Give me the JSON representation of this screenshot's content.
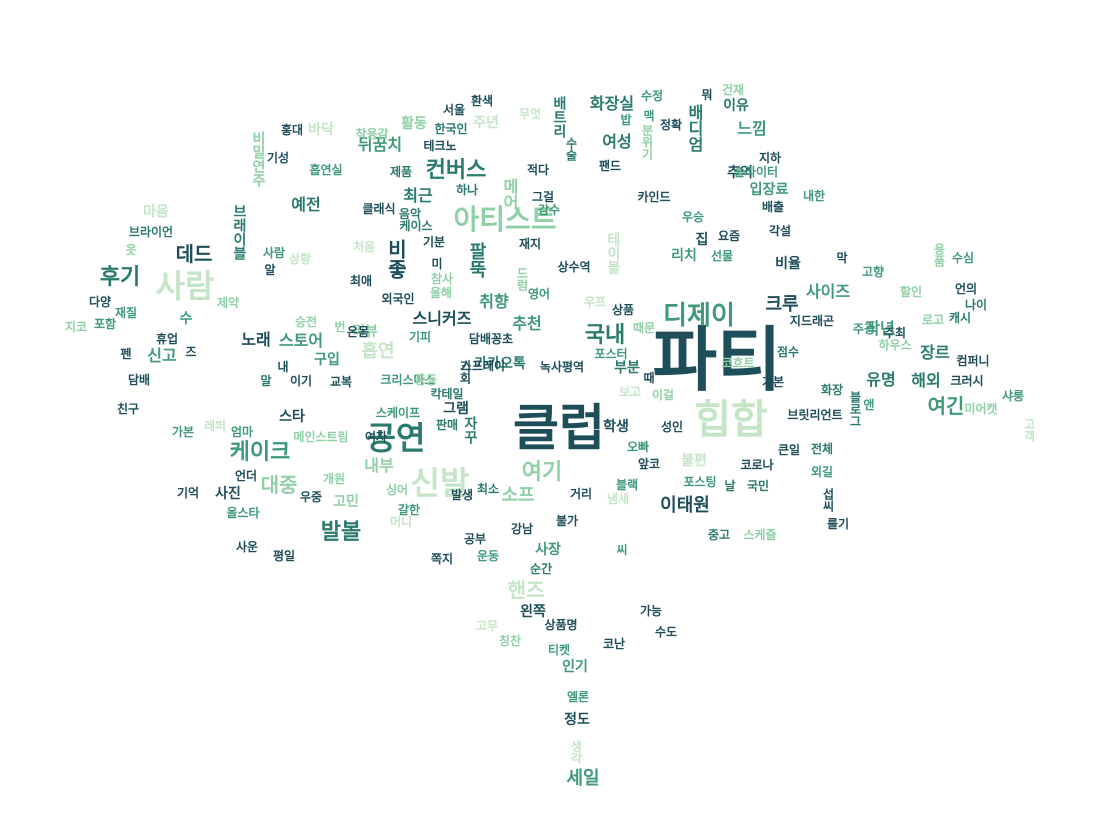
{
  "colors": {
    "dark": "#1d4e5a",
    "teal": "#2a7a6e",
    "green": "#3f9a78",
    "mint": "#8fd0a6",
    "pale": "#c4e6c6"
  },
  "words": [
    {
      "text": "파티",
      "c": "dark"
    },
    {
      "text": "클럽",
      "c": "dark"
    },
    {
      "text": "힙합",
      "c": "pale"
    },
    {
      "text": "공연",
      "c": "teal"
    },
    {
      "text": "사람",
      "c": "pale"
    },
    {
      "text": "아티스트",
      "c": "mint"
    },
    {
      "text": "신발",
      "c": "pale"
    },
    {
      "text": "디제이",
      "c": "green"
    },
    {
      "text": "후기",
      "c": "teal"
    },
    {
      "text": "컨버스",
      "c": "teal"
    },
    {
      "text": "케이크",
      "c": "green"
    },
    {
      "text": "발볼",
      "c": "teal"
    },
    {
      "text": "여기",
      "c": "mint"
    },
    {
      "text": "국내",
      "c": "teal"
    },
    {
      "text": "데드",
      "c": "dark"
    },
    {
      "text": "대중",
      "c": "mint"
    },
    {
      "text": "여긴",
      "c": "green"
    },
    {
      "text": "이태원",
      "c": "dark"
    },
    {
      "text": "소프",
      "c": "mint"
    },
    {
      "text": "핸즈",
      "c": "pale"
    },
    {
      "text": "세일",
      "c": "green"
    },
    {
      "text": "크루",
      "c": "dark"
    },
    {
      "text": "흡연",
      "c": "pale"
    },
    {
      "text": "추천",
      "c": "green"
    },
    {
      "text": "취향",
      "c": "green"
    },
    {
      "text": "화장실",
      "c": "teal"
    },
    {
      "text": "여성",
      "c": "teal"
    },
    {
      "text": "느낌",
      "c": "green"
    },
    {
      "text": "노래",
      "c": "dark"
    },
    {
      "text": "스토어",
      "c": "green"
    },
    {
      "text": "신고",
      "c": "green"
    },
    {
      "text": "내부",
      "c": "mint"
    },
    {
      "text": "장르",
      "c": "teal"
    },
    {
      "text": "작년",
      "c": "green"
    },
    {
      "text": "사이즈",
      "c": "green"
    },
    {
      "text": "유명",
      "c": "teal"
    },
    {
      "text": "해외",
      "c": "teal"
    },
    {
      "text": "최근",
      "c": "teal"
    },
    {
      "text": "예전",
      "c": "teal"
    },
    {
      "text": "뒤꿈치",
      "c": "green"
    },
    {
      "text": "스니커즈",
      "c": "dark"
    },
    {
      "text": "사진",
      "c": "dark"
    },
    {
      "text": "사장",
      "c": "green"
    },
    {
      "text": "정도",
      "c": "dark"
    },
    {
      "text": "인기",
      "c": "green"
    },
    {
      "text": "학생",
      "c": "dark"
    },
    {
      "text": "그램",
      "c": "dark"
    },
    {
      "text": "카카오톡",
      "c": "teal"
    },
    {
      "text": "부분",
      "c": "teal"
    },
    {
      "text": "리뷰",
      "c": "mint"
    },
    {
      "text": "구입",
      "c": "green"
    },
    {
      "text": "고민",
      "c": "mint"
    },
    {
      "text": "스타",
      "c": "dark"
    },
    {
      "text": "리치",
      "c": "green"
    },
    {
      "text": "비율",
      "c": "dark"
    },
    {
      "text": "입장료",
      "c": "green"
    },
    {
      "text": "추억",
      "c": "dark"
    },
    {
      "text": "이유",
      "c": "teal"
    },
    {
      "text": "마음",
      "c": "pale"
    },
    {
      "text": "활동",
      "c": "mint"
    },
    {
      "text": "바닥",
      "c": "pale"
    },
    {
      "text": "주년",
      "c": "pale"
    },
    {
      "text": "한국인",
      "c": "teal"
    },
    {
      "text": "교복",
      "c": "dark"
    },
    {
      "text": "왼쪽",
      "c": "dark"
    },
    {
      "text": "집",
      "c": "dark"
    },
    {
      "text": "불편",
      "c": "pale"
    },
    {
      "text": "전체",
      "c": "teal"
    },
    {
      "text": "코로나",
      "c": "dark"
    },
    {
      "text": "거리",
      "c": "dark"
    },
    {
      "text": "상품명",
      "c": "dark"
    },
    {
      "text": "수",
      "c": "green"
    },
    {
      "text": "휴업",
      "c": "dark"
    },
    {
      "text": "담배",
      "c": "dark"
    },
    {
      "text": "펜",
      "c": "dark"
    },
    {
      "text": "다양",
      "c": "dark"
    },
    {
      "text": "지코",
      "c": "mint"
    },
    {
      "text": "포함",
      "c": "green"
    },
    {
      "text": "재질",
      "c": "green"
    },
    {
      "text": "친구",
      "c": "dark"
    },
    {
      "text": "기억",
      "c": "dark"
    },
    {
      "text": "사운",
      "c": "dark"
    },
    {
      "text": "평일",
      "c": "dark"
    },
    {
      "text": "올스타",
      "c": "green"
    },
    {
      "text": "언더",
      "c": "dark"
    },
    {
      "text": "우중",
      "c": "dark"
    },
    {
      "text": "홍대",
      "c": "dark"
    },
    {
      "text": "기성",
      "c": "dark"
    },
    {
      "text": "흡연실",
      "c": "green"
    },
    {
      "text": "제품",
      "c": "teal"
    },
    {
      "text": "착용감",
      "c": "mint"
    },
    {
      "text": "클래식",
      "c": "dark"
    },
    {
      "text": "음악",
      "c": "teal"
    },
    {
      "text": "케이스",
      "c": "teal"
    },
    {
      "text": "기분",
      "c": "dark"
    },
    {
      "text": "최애",
      "c": "dark"
    },
    {
      "text": "외국인",
      "c": "dark"
    },
    {
      "text": "스프레이",
      "c": "dark"
    },
    {
      "text": "녹사평역",
      "c": "dark"
    },
    {
      "text": "담배꽁초",
      "c": "dark"
    },
    {
      "text": "크리스마스",
      "c": "green"
    },
    {
      "text": "판매",
      "c": "teal"
    },
    {
      "text": "스케이프",
      "c": "green"
    },
    {
      "text": "상수역",
      "c": "dark"
    },
    {
      "text": "재지",
      "c": "dark"
    },
    {
      "text": "감수",
      "c": "green"
    },
    {
      "text": "그걸",
      "c": "dark"
    },
    {
      "text": "하나",
      "c": "teal"
    },
    {
      "text": "테크노",
      "c": "dark"
    },
    {
      "text": "서울",
      "c": "dark"
    },
    {
      "text": "환색",
      "c": "dark"
    },
    {
      "text": "무엇",
      "c": "pale"
    },
    {
      "text": "수정",
      "c": "green"
    },
    {
      "text": "건재",
      "c": "mint"
    },
    {
      "text": "뭐",
      "c": "dark"
    },
    {
      "text": "정확",
      "c": "dark"
    },
    {
      "text": "맥",
      "c": "green"
    },
    {
      "text": "밥",
      "c": "green"
    },
    {
      "text": "팬드",
      "c": "dark"
    },
    {
      "text": "적다",
      "c": "dark"
    },
    {
      "text": "카인드",
      "c": "dark"
    },
    {
      "text": "지하",
      "c": "dark"
    },
    {
      "text": "솔라이터",
      "c": "green"
    },
    {
      "text": "배출",
      "c": "dark"
    },
    {
      "text": "내한",
      "c": "green"
    },
    {
      "text": "우승",
      "c": "green"
    },
    {
      "text": "요즘",
      "c": "dark"
    },
    {
      "text": "각설",
      "c": "dark"
    },
    {
      "text": "선물",
      "c": "green"
    },
    {
      "text": "막",
      "c": "dark"
    },
    {
      "text": "수심",
      "c": "green"
    },
    {
      "text": "고향",
      "c": "green"
    },
    {
      "text": "할인",
      "c": "mint"
    },
    {
      "text": "언의",
      "c": "dark"
    },
    {
      "text": "나이",
      "c": "teal"
    },
    {
      "text": "지드래곤",
      "c": "dark"
    },
    {
      "text": "로고",
      "c": "mint"
    },
    {
      "text": "캐시",
      "c": "teal"
    },
    {
      "text": "주광",
      "c": "green"
    },
    {
      "text": "주최",
      "c": "dark"
    },
    {
      "text": "하우스",
      "c": "mint"
    },
    {
      "text": "컴퍼니",
      "c": "dark"
    },
    {
      "text": "점수",
      "c": "teal"
    },
    {
      "text": "기본",
      "c": "dark"
    },
    {
      "text": "화장",
      "c": "teal"
    },
    {
      "text": "크러시",
      "c": "dark"
    },
    {
      "text": "샤룽",
      "c": "green"
    },
    {
      "text": "미어캣",
      "c": "mint"
    },
    {
      "text": "브릿리언트",
      "c": "dark"
    },
    {
      "text": "앤",
      "c": "green"
    },
    {
      "text": "큰일",
      "c": "dark"
    },
    {
      "text": "외길",
      "c": "green"
    },
    {
      "text": "국민",
      "c": "teal"
    },
    {
      "text": "날",
      "c": "teal"
    },
    {
      "text": "포스팅",
      "c": "green"
    },
    {
      "text": "블랙",
      "c": "green"
    },
    {
      "text": "냄새",
      "c": "pale"
    },
    {
      "text": "앞코",
      "c": "dark"
    },
    {
      "text": "오빠",
      "c": "green"
    },
    {
      "text": "성인",
      "c": "dark"
    },
    {
      "text": "이걸",
      "c": "mint"
    },
    {
      "text": "보고",
      "c": "pale"
    },
    {
      "text": "때",
      "c": "dark"
    },
    {
      "text": "코흐트",
      "c": "mint"
    },
    {
      "text": "포스터",
      "c": "green"
    },
    {
      "text": "때문",
      "c": "mint"
    },
    {
      "text": "상품",
      "c": "dark"
    },
    {
      "text": "우프",
      "c": "pale"
    },
    {
      "text": "영어",
      "c": "green"
    },
    {
      "text": "올해",
      "c": "mint"
    },
    {
      "text": "참사",
      "c": "mint"
    },
    {
      "text": "미",
      "c": "dark"
    },
    {
      "text": "처음",
      "c": "pale"
    },
    {
      "text": "기피",
      "c": "green"
    },
    {
      "text": "등등",
      "c": "mint"
    },
    {
      "text": "칵테일",
      "c": "teal"
    },
    {
      "text": "메인스트림",
      "c": "mint"
    },
    {
      "text": "여자",
      "c": "dark"
    },
    {
      "text": "개원",
      "c": "mint"
    },
    {
      "text": "싱어",
      "c": "mint"
    },
    {
      "text": "머니",
      "c": "pale"
    },
    {
      "text": "발생",
      "c": "dark"
    },
    {
      "text": "최소",
      "c": "teal"
    },
    {
      "text": "갈한",
      "c": "green"
    },
    {
      "text": "강남",
      "c": "dark"
    },
    {
      "text": "불가",
      "c": "dark"
    },
    {
      "text": "공부",
      "c": "dark"
    },
    {
      "text": "운동",
      "c": "green"
    },
    {
      "text": "쪽지",
      "c": "dark"
    },
    {
      "text": "순간",
      "c": "teal"
    },
    {
      "text": "씨",
      "c": "green"
    },
    {
      "text": "중고",
      "c": "teal"
    },
    {
      "text": "스케줄",
      "c": "mint"
    },
    {
      "text": "를기",
      "c": "dark"
    },
    {
      "text": "가능",
      "c": "dark"
    },
    {
      "text": "수도",
      "c": "dark"
    },
    {
      "text": "코난",
      "c": "dark"
    },
    {
      "text": "티켓",
      "c": "green"
    },
    {
      "text": "칭찬",
      "c": "mint"
    },
    {
      "text": "고무",
      "c": "pale"
    },
    {
      "text": "엘론",
      "c": "green"
    },
    {
      "text": "가본",
      "c": "green"
    },
    {
      "text": "레퍼",
      "c": "pale"
    },
    {
      "text": "엄마",
      "c": "green"
    },
    {
      "text": "내",
      "c": "dark"
    },
    {
      "text": "말",
      "c": "teal"
    },
    {
      "text": "이기",
      "c": "dark"
    },
    {
      "text": "승전",
      "c": "mint"
    },
    {
      "text": "번",
      "c": "mint"
    },
    {
      "text": "온몸",
      "c": "dark"
    },
    {
      "text": "알",
      "c": "dark"
    },
    {
      "text": "상황",
      "c": "pale"
    },
    {
      "text": "사람",
      "c": "green"
    },
    {
      "text": "브라이언",
      "c": "teal"
    },
    {
      "text": "제약",
      "c": "mint"
    },
    {
      "text": "옷",
      "c": "mint"
    },
    {
      "text": "즈",
      "c": "dark"
    }
  ],
  "vertical_words": [
    {
      "text": "비좋",
      "c": "dark"
    },
    {
      "text": "팔뚝",
      "c": "teal"
    },
    {
      "text": "메어",
      "c": "mint"
    },
    {
      "text": "배트리",
      "c": "teal"
    },
    {
      "text": "배디엄",
      "c": "teal"
    },
    {
      "text": "비밀연주",
      "c": "mint"
    },
    {
      "text": "브래이블",
      "c": "teal"
    },
    {
      "text": "자꾸",
      "c": "teal"
    },
    {
      "text": "섭씨",
      "c": "dark"
    },
    {
      "text": "테이블",
      "c": "pale"
    },
    {
      "text": "드럼",
      "c": "mint"
    },
    {
      "text": "기회",
      "c": "dark"
    },
    {
      "text": "생각",
      "c": "pale"
    },
    {
      "text": "용품",
      "c": "mint"
    },
    {
      "text": "블로그",
      "c": "teal"
    },
    {
      "text": "분위기",
      "c": "mint"
    },
    {
      "text": "수술",
      "c": "teal"
    },
    {
      "text": "고객",
      "c": "pale"
    }
  ]
}
